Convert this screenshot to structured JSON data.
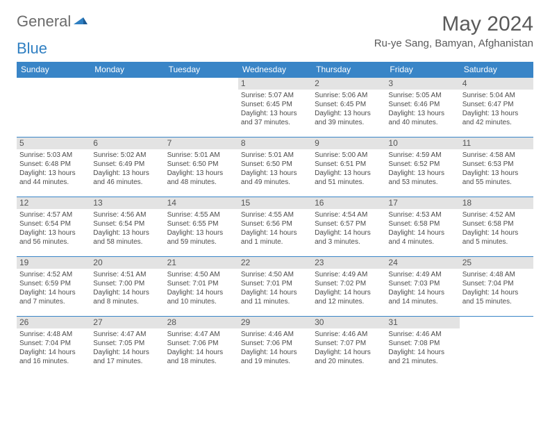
{
  "brand": {
    "part1": "General",
    "part2": "Blue"
  },
  "title": "May 2024",
  "location": "Ru-ye Sang, Bamyan, Afghanistan",
  "colors": {
    "header_bg": "#3985c7",
    "header_text": "#ffffff",
    "daynum_bg": "#e3e3e3",
    "border": "#3985c7",
    "brand_gray": "#6b6b6b",
    "brand_blue": "#2f7fc2"
  },
  "day_headers": [
    "Sunday",
    "Monday",
    "Tuesday",
    "Wednesday",
    "Thursday",
    "Friday",
    "Saturday"
  ],
  "weeks": [
    [
      {
        "day": "",
        "lines": []
      },
      {
        "day": "",
        "lines": []
      },
      {
        "day": "",
        "lines": []
      },
      {
        "day": "1",
        "lines": [
          "Sunrise: 5:07 AM",
          "Sunset: 6:45 PM",
          "Daylight: 13 hours and 37 minutes."
        ]
      },
      {
        "day": "2",
        "lines": [
          "Sunrise: 5:06 AM",
          "Sunset: 6:45 PM",
          "Daylight: 13 hours and 39 minutes."
        ]
      },
      {
        "day": "3",
        "lines": [
          "Sunrise: 5:05 AM",
          "Sunset: 6:46 PM",
          "Daylight: 13 hours and 40 minutes."
        ]
      },
      {
        "day": "4",
        "lines": [
          "Sunrise: 5:04 AM",
          "Sunset: 6:47 PM",
          "Daylight: 13 hours and 42 minutes."
        ]
      }
    ],
    [
      {
        "day": "5",
        "lines": [
          "Sunrise: 5:03 AM",
          "Sunset: 6:48 PM",
          "Daylight: 13 hours and 44 minutes."
        ]
      },
      {
        "day": "6",
        "lines": [
          "Sunrise: 5:02 AM",
          "Sunset: 6:49 PM",
          "Daylight: 13 hours and 46 minutes."
        ]
      },
      {
        "day": "7",
        "lines": [
          "Sunrise: 5:01 AM",
          "Sunset: 6:50 PM",
          "Daylight: 13 hours and 48 minutes."
        ]
      },
      {
        "day": "8",
        "lines": [
          "Sunrise: 5:01 AM",
          "Sunset: 6:50 PM",
          "Daylight: 13 hours and 49 minutes."
        ]
      },
      {
        "day": "9",
        "lines": [
          "Sunrise: 5:00 AM",
          "Sunset: 6:51 PM",
          "Daylight: 13 hours and 51 minutes."
        ]
      },
      {
        "day": "10",
        "lines": [
          "Sunrise: 4:59 AM",
          "Sunset: 6:52 PM",
          "Daylight: 13 hours and 53 minutes."
        ]
      },
      {
        "day": "11",
        "lines": [
          "Sunrise: 4:58 AM",
          "Sunset: 6:53 PM",
          "Daylight: 13 hours and 55 minutes."
        ]
      }
    ],
    [
      {
        "day": "12",
        "lines": [
          "Sunrise: 4:57 AM",
          "Sunset: 6:54 PM",
          "Daylight: 13 hours and 56 minutes."
        ]
      },
      {
        "day": "13",
        "lines": [
          "Sunrise: 4:56 AM",
          "Sunset: 6:54 PM",
          "Daylight: 13 hours and 58 minutes."
        ]
      },
      {
        "day": "14",
        "lines": [
          "Sunrise: 4:55 AM",
          "Sunset: 6:55 PM",
          "Daylight: 13 hours and 59 minutes."
        ]
      },
      {
        "day": "15",
        "lines": [
          "Sunrise: 4:55 AM",
          "Sunset: 6:56 PM",
          "Daylight: 14 hours and 1 minute."
        ]
      },
      {
        "day": "16",
        "lines": [
          "Sunrise: 4:54 AM",
          "Sunset: 6:57 PM",
          "Daylight: 14 hours and 3 minutes."
        ]
      },
      {
        "day": "17",
        "lines": [
          "Sunrise: 4:53 AM",
          "Sunset: 6:58 PM",
          "Daylight: 14 hours and 4 minutes."
        ]
      },
      {
        "day": "18",
        "lines": [
          "Sunrise: 4:52 AM",
          "Sunset: 6:58 PM",
          "Daylight: 14 hours and 5 minutes."
        ]
      }
    ],
    [
      {
        "day": "19",
        "lines": [
          "Sunrise: 4:52 AM",
          "Sunset: 6:59 PM",
          "Daylight: 14 hours and 7 minutes."
        ]
      },
      {
        "day": "20",
        "lines": [
          "Sunrise: 4:51 AM",
          "Sunset: 7:00 PM",
          "Daylight: 14 hours and 8 minutes."
        ]
      },
      {
        "day": "21",
        "lines": [
          "Sunrise: 4:50 AM",
          "Sunset: 7:01 PM",
          "Daylight: 14 hours and 10 minutes."
        ]
      },
      {
        "day": "22",
        "lines": [
          "Sunrise: 4:50 AM",
          "Sunset: 7:01 PM",
          "Daylight: 14 hours and 11 minutes."
        ]
      },
      {
        "day": "23",
        "lines": [
          "Sunrise: 4:49 AM",
          "Sunset: 7:02 PM",
          "Daylight: 14 hours and 12 minutes."
        ]
      },
      {
        "day": "24",
        "lines": [
          "Sunrise: 4:49 AM",
          "Sunset: 7:03 PM",
          "Daylight: 14 hours and 14 minutes."
        ]
      },
      {
        "day": "25",
        "lines": [
          "Sunrise: 4:48 AM",
          "Sunset: 7:04 PM",
          "Daylight: 14 hours and 15 minutes."
        ]
      }
    ],
    [
      {
        "day": "26",
        "lines": [
          "Sunrise: 4:48 AM",
          "Sunset: 7:04 PM",
          "Daylight: 14 hours and 16 minutes."
        ]
      },
      {
        "day": "27",
        "lines": [
          "Sunrise: 4:47 AM",
          "Sunset: 7:05 PM",
          "Daylight: 14 hours and 17 minutes."
        ]
      },
      {
        "day": "28",
        "lines": [
          "Sunrise: 4:47 AM",
          "Sunset: 7:06 PM",
          "Daylight: 14 hours and 18 minutes."
        ]
      },
      {
        "day": "29",
        "lines": [
          "Sunrise: 4:46 AM",
          "Sunset: 7:06 PM",
          "Daylight: 14 hours and 19 minutes."
        ]
      },
      {
        "day": "30",
        "lines": [
          "Sunrise: 4:46 AM",
          "Sunset: 7:07 PM",
          "Daylight: 14 hours and 20 minutes."
        ]
      },
      {
        "day": "31",
        "lines": [
          "Sunrise: 4:46 AM",
          "Sunset: 7:08 PM",
          "Daylight: 14 hours and 21 minutes."
        ]
      },
      {
        "day": "",
        "lines": []
      }
    ]
  ]
}
